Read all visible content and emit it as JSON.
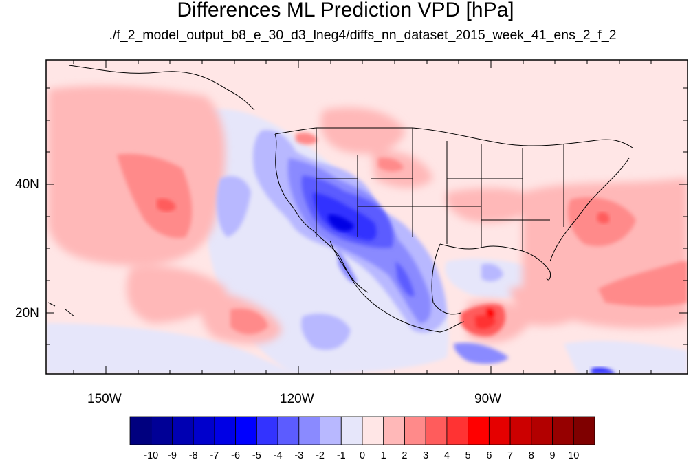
{
  "title": "Differences ML Prediction VPD [hPa]",
  "subtitle": "./f_2_model_output_b8_e_30_d3_lneg4/diffs_nn_dataset_2015_week_41_ens_2_f_2",
  "map": {
    "projection": "cylindrical-equidistant",
    "lon_range": [
      -160,
      -61
    ],
    "lat_range": [
      11,
      58
    ],
    "lon_ticks": [
      {
        "value": -150,
        "label": "150W"
      },
      {
        "value": -120,
        "label": "120W"
      },
      {
        "value": -90,
        "label": "90W"
      }
    ],
    "lat_ticks": [
      {
        "value": 40,
        "label": "40N"
      },
      {
        "value": 20,
        "label": "20N"
      }
    ]
  },
  "colorbar": {
    "labels": [
      "-10",
      "-9",
      "-8",
      "-7",
      "-6",
      "-5",
      "-4",
      "-3",
      "-2",
      "-1",
      "0",
      "1",
      "2",
      "3",
      "4",
      "5",
      "6",
      "7",
      "8",
      "9",
      "10"
    ],
    "colors": [
      "#00007f",
      "#000096",
      "#0000b2",
      "#0000cc",
      "#0000e5",
      "#0000ff",
      "#3333ff",
      "#5c5cff",
      "#8a8aff",
      "#b8b8ff",
      "#e6e6fa",
      "#ffe6e6",
      "#ffb8b8",
      "#ff8a8a",
      "#ff5c5c",
      "#ff3333",
      "#ff0000",
      "#e50000",
      "#cc0000",
      "#b20000",
      "#960000",
      "#7f0000"
    ]
  },
  "field": {
    "background_class": "0 to 1",
    "regions": [
      {
        "name": "northeast-pacific-positive",
        "class": "1 to 2"
      },
      {
        "name": "central-pacific-max",
        "class": "3 to 4"
      },
      {
        "name": "western-atlantic-positive",
        "class": "2 to 3"
      },
      {
        "name": "southwest-us-negative",
        "class": "-5 to -4"
      },
      {
        "name": "mexico-negative",
        "class": "-3 to -2"
      },
      {
        "name": "central-america-positive",
        "class": "5 to 6"
      },
      {
        "name": "eastern-pacific-negative",
        "class": "-2 to -1"
      }
    ]
  }
}
